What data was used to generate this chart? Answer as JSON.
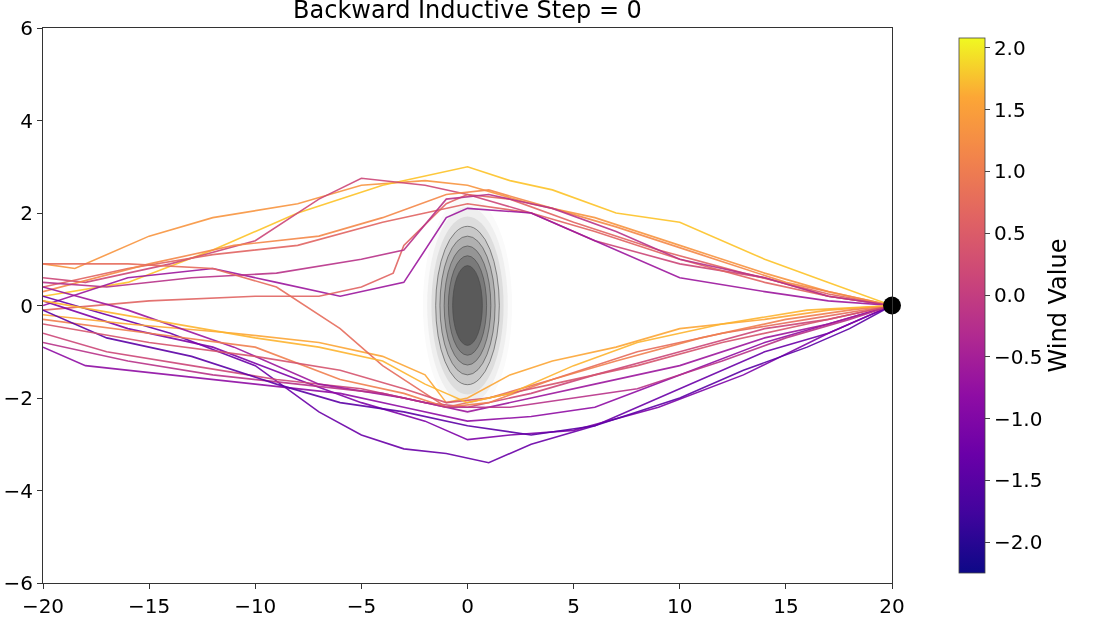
{
  "chart_data": {
    "type": "line",
    "title": "Backward Inductive Step = 0",
    "clabel": "Wind Value",
    "clim": [
      -2.25,
      2.08
    ],
    "cticks": [
      {
        "value": -2,
        "label": "−2.0"
      },
      {
        "value": -1.5,
        "label": "−1.5"
      },
      {
        "value": -1,
        "label": "−1.0"
      },
      {
        "value": -0.5,
        "label": "−0.5"
      },
      {
        "value": 0,
        "label": "0.0"
      },
      {
        "value": 0.5,
        "label": "0.5"
      },
      {
        "value": 1,
        "label": "1.0"
      },
      {
        "value": 1.5,
        "label": "1.5"
      },
      {
        "value": 2,
        "label": "2.0"
      }
    ],
    "xlim": [
      -20,
      20
    ],
    "xticks": [
      {
        "value": -20,
        "label": "−20"
      },
      {
        "value": -15,
        "label": "−15"
      },
      {
        "value": -10,
        "label": "−10"
      },
      {
        "value": -5,
        "label": "−5"
      },
      0,
      5,
      10,
      15,
      20
    ],
    "ylim": [
      -6,
      6
    ],
    "yticks": [
      {
        "value": -6,
        "label": "−6"
      },
      {
        "value": -4,
        "label": "−4"
      },
      {
        "value": -2,
        "label": "−2"
      },
      0,
      2,
      4,
      6
    ],
    "grid": false,
    "series": [
      {
        "color": "#f89540",
        "x": [
          -20,
          -18.5,
          -15,
          -12,
          -8,
          -5,
          -2,
          0,
          3,
          6,
          10,
          14,
          17,
          20
        ],
        "values": [
          0.9,
          0.8,
          1.5,
          1.9,
          2.2,
          2.6,
          2.7,
          2.6,
          2.2,
          1.9,
          1.3,
          0.7,
          0.3,
          0
        ]
      },
      {
        "color": "#fdc328",
        "x": [
          -20,
          -16,
          -12,
          -8,
          -4,
          0,
          2,
          4,
          7,
          10,
          14,
          17,
          20
        ],
        "values": [
          0.2,
          0.5,
          1.2,
          2.0,
          2.6,
          3.0,
          2.7,
          2.5,
          2.0,
          1.8,
          1.0,
          0.5,
          0
        ]
      },
      {
        "color": "#cc4778",
        "x": [
          -20,
          -18,
          -14,
          -10,
          -7,
          -5,
          -2,
          0,
          3,
          6,
          10,
          14,
          17,
          20
        ],
        "values": [
          0.6,
          0.5,
          0.9,
          1.4,
          2.3,
          2.75,
          2.6,
          2.4,
          2.0,
          1.4,
          0.9,
          0.6,
          0.2,
          0
        ]
      },
      {
        "color": "#e16462",
        "x": [
          -20,
          -16,
          -12,
          -8,
          -4,
          -2,
          0,
          3,
          6,
          10,
          14,
          17,
          20
        ],
        "values": [
          0.4,
          0.8,
          1.1,
          1.3,
          1.8,
          2.0,
          2.2,
          2.0,
          1.6,
          1.0,
          0.5,
          0.2,
          0
        ]
      },
      {
        "color": "#9c179e",
        "x": [
          -20,
          -16,
          -12,
          -9,
          -6,
          -3,
          -1,
          0,
          3,
          6,
          10,
          14,
          17,
          20
        ],
        "values": [
          0.0,
          0.6,
          0.8,
          0.5,
          0.2,
          0.5,
          1.9,
          2.1,
          2.0,
          1.4,
          0.6,
          0.3,
          0.1,
          0
        ]
      },
      {
        "color": "#e16462",
        "x": [
          -20,
          -15,
          -10,
          -7,
          -5,
          -3.5,
          -3,
          -1,
          0,
          2,
          5,
          9,
          13,
          17,
          20
        ],
        "values": [
          -0.1,
          0.1,
          0.2,
          0.2,
          0.4,
          0.7,
          1.3,
          2.2,
          2.4,
          2.3,
          1.8,
          1.2,
          0.7,
          0.25,
          0
        ]
      },
      {
        "color": "#f48849",
        "x": [
          -20,
          -15,
          -11,
          -7,
          -4,
          -1,
          1,
          4,
          7,
          11,
          15,
          18,
          20
        ],
        "values": [
          0.3,
          0.9,
          1.3,
          1.5,
          1.9,
          2.4,
          2.5,
          2.1,
          1.7,
          1.1,
          0.5,
          0.2,
          0
        ]
      },
      {
        "color": "#b83289",
        "x": [
          -20,
          -17,
          -13,
          -9,
          -5,
          -3,
          -1,
          1,
          4,
          7,
          10,
          14,
          17,
          20
        ],
        "values": [
          0.5,
          0.4,
          0.6,
          0.7,
          1.0,
          1.2,
          2.3,
          2.4,
          2.1,
          1.6,
          1.0,
          0.6,
          0.2,
          0
        ]
      },
      {
        "color": "#6a00a8",
        "x": [
          -20,
          -17,
          -14,
          -10,
          -7,
          -5,
          -3,
          -1,
          1,
          3,
          6,
          10,
          14,
          17,
          20
        ],
        "values": [
          0.2,
          -0.2,
          -0.6,
          -1.3,
          -2.3,
          -2.8,
          -3.1,
          -3.2,
          -3.4,
          -3.0,
          -2.6,
          -1.8,
          -1.0,
          -0.6,
          0
        ]
      },
      {
        "color": "#7e03a8",
        "x": [
          -20,
          -16,
          -12,
          -8,
          -5,
          -2,
          0,
          2,
          5,
          9,
          13,
          17,
          20
        ],
        "values": [
          0.1,
          -0.5,
          -0.9,
          -1.6,
          -2.1,
          -2.5,
          -2.9,
          -2.8,
          -2.7,
          -2.2,
          -1.5,
          -0.6,
          0
        ]
      },
      {
        "color": "#8f0da4",
        "x": [
          -20,
          -18,
          -14,
          -10,
          -6,
          -3,
          0,
          3,
          6,
          10,
          14,
          17,
          20
        ],
        "values": [
          -0.9,
          -1.3,
          -1.5,
          -1.7,
          -1.9,
          -2.2,
          -2.5,
          -2.4,
          -2.2,
          -1.5,
          -0.8,
          -0.4,
          0
        ]
      },
      {
        "color": "#cc4778",
        "x": [
          -20,
          -17,
          -13,
          -9,
          -5,
          -2,
          0,
          3,
          6,
          10,
          14,
          17,
          20
        ],
        "values": [
          -0.6,
          -1.0,
          -1.3,
          -1.6,
          -1.8,
          -2.1,
          -2.2,
          -1.9,
          -1.5,
          -1.0,
          -0.5,
          -0.3,
          0
        ]
      },
      {
        "color": "#fca636",
        "x": [
          -20,
          -16,
          -11,
          -7,
          -4,
          -2,
          -1,
          0,
          2,
          4,
          7,
          10,
          14,
          17,
          20
        ],
        "values": [
          -0.2,
          -0.4,
          -0.6,
          -0.8,
          -1.1,
          -1.5,
          -2.1,
          -2.0,
          -1.5,
          -1.2,
          -0.9,
          -0.5,
          -0.3,
          -0.1,
          0
        ]
      },
      {
        "color": "#e66c5c",
        "x": [
          -20,
          -16,
          -12,
          -9,
          -6,
          -4,
          -2,
          -1,
          1,
          4,
          8,
          12,
          16,
          20
        ],
        "values": [
          0.9,
          0.9,
          0.8,
          0.4,
          -0.5,
          -1.3,
          -1.9,
          -2.2,
          -2.0,
          -1.6,
          -1.0,
          -0.6,
          -0.3,
          0
        ]
      },
      {
        "color": "#9c179e",
        "x": [
          -20,
          -16,
          -11,
          -7,
          -3,
          0,
          3,
          6,
          10,
          14,
          17,
          20
        ],
        "values": [
          0.4,
          -0.1,
          -0.9,
          -1.7,
          -2.0,
          -2.3,
          -2.0,
          -1.7,
          -1.3,
          -0.7,
          -0.4,
          0
        ]
      },
      {
        "color": "#f07f4f",
        "x": [
          -20,
          -15,
          -10,
          -6,
          -3,
          -1,
          1,
          4,
          7,
          11,
          15,
          18,
          20
        ],
        "values": [
          -0.3,
          -0.6,
          -0.9,
          -1.6,
          -1.9,
          -2.2,
          -2.1,
          -1.6,
          -1.2,
          -0.7,
          -0.3,
          -0.1,
          0
        ]
      },
      {
        "color": "#b83289",
        "x": [
          -20,
          -16,
          -12,
          -8,
          -4,
          -1,
          2,
          5,
          8,
          12,
          15,
          18,
          20
        ],
        "values": [
          -0.8,
          -1.2,
          -1.5,
          -1.7,
          -1.9,
          -2.2,
          -2.2,
          -2.0,
          -1.8,
          -1.2,
          -0.7,
          -0.3,
          0
        ]
      },
      {
        "color": "#5c01a6",
        "x": [
          -20,
          -17,
          -13,
          -9,
          -6,
          -3,
          0,
          3,
          6,
          10,
          13,
          16,
          18,
          20
        ],
        "values": [
          -0.1,
          -0.7,
          -1.1,
          -1.7,
          -2.1,
          -2.3,
          -2.6,
          -2.8,
          -2.6,
          -2.0,
          -1.4,
          -0.9,
          -0.5,
          0
        ]
      },
      {
        "color": "#d5546e",
        "x": [
          -20,
          -15,
          -10,
          -6,
          -3,
          -1,
          1,
          4,
          8,
          12,
          16,
          20
        ],
        "values": [
          -0.4,
          -0.8,
          -1.1,
          -1.4,
          -1.8,
          -2.1,
          -2.0,
          -1.7,
          -1.3,
          -0.8,
          -0.4,
          0
        ]
      },
      {
        "color": "#fdb42f",
        "x": [
          -20,
          -15,
          -10,
          -7,
          -4,
          -2,
          0,
          2,
          5,
          8,
          12,
          16,
          20
        ],
        "values": [
          0.1,
          -0.3,
          -0.7,
          -0.9,
          -1.2,
          -1.7,
          -2.1,
          -1.9,
          -1.3,
          -0.8,
          -0.4,
          -0.1,
          0
        ]
      },
      {
        "type": "scatter",
        "marker": "circle",
        "color": "#000000",
        "x": [
          20
        ],
        "values": [
          0
        ]
      }
    ]
  }
}
